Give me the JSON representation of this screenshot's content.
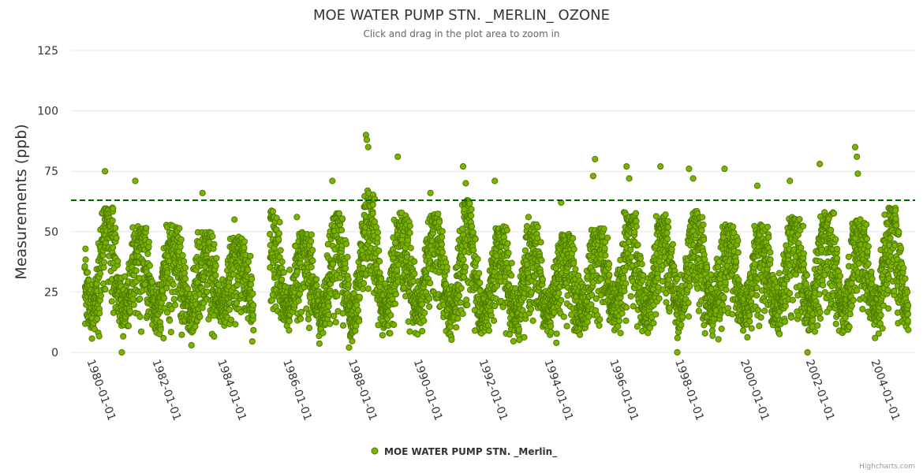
{
  "chart_data": {
    "type": "scatter",
    "title": "MOE WATER PUMP STN. _MERLIN_ OZONE",
    "subtitle": "Click and drag in the plot area to zoom in",
    "ylabel": "Measurements (ppb)",
    "xlabel": "",
    "ylim": [
      0,
      125
    ],
    "yticks": [
      0,
      25,
      50,
      75,
      100,
      125
    ],
    "xlim": [
      "1979-06-01",
      "2005-04-01"
    ],
    "xticks": [
      "1980-01-01",
      "1982-01-01",
      "1984-01-01",
      "1986-01-01",
      "1988-01-01",
      "1990-01-01",
      "1992-01-01",
      "1994-01-01",
      "1996-01-01",
      "1998-01-01",
      "2000-01-01",
      "2002-01-01",
      "2004-01-01"
    ],
    "reference_line": {
      "value": 63,
      "style": "dashed",
      "color": "#006600"
    },
    "grid": true,
    "legend_position": "bottom-center",
    "series": [
      {
        "name": "MOE WATER PUMP STN. _Merlin_",
        "color": "#7cb300",
        "border_color": "#4d7a00",
        "seasonal_model": {
          "note": "daily readings, summer peaks / winter lows; yearly summer peak levels listed",
          "years": [
            1980,
            1981,
            1982,
            1983,
            1984,
            1986,
            1987,
            1988,
            1989,
            1990,
            1991,
            1992,
            1993,
            1994,
            1995,
            1996,
            1997,
            1998,
            1999,
            2000,
            2001,
            2002,
            2003,
            2004
          ],
          "summer_peak": [
            52,
            45,
            45,
            42,
            40,
            42,
            50,
            60,
            50,
            50,
            55,
            45,
            45,
            42,
            45,
            50,
            50,
            52,
            45,
            45,
            48,
            50,
            48,
            52
          ],
          "winter_low": [
            12,
            12,
            12,
            12,
            12,
            12,
            8,
            10,
            12,
            12,
            10,
            10,
            10,
            12,
            12,
            12,
            12,
            12,
            12,
            12,
            12,
            12,
            12,
            12
          ],
          "data_gap": [
            "1985-01-01",
            "1985-07-01"
          ],
          "data_start": "1979-11-01",
          "data_end": "2005-01-15"
        },
        "notable_points": [
          {
            "x": "1980-06-15",
            "y": 75
          },
          {
            "x": "1981-05-20",
            "y": 71
          },
          {
            "x": "1983-06-10",
            "y": 66
          },
          {
            "x": "1984-06-01",
            "y": 55
          },
          {
            "x": "1986-05-01",
            "y": 56
          },
          {
            "x": "1987-06-01",
            "y": 71
          },
          {
            "x": "1988-06-10",
            "y": 90
          },
          {
            "x": "1988-06-20",
            "y": 88
          },
          {
            "x": "1988-07-05",
            "y": 85
          },
          {
            "x": "1989-06-01",
            "y": 81
          },
          {
            "x": "1990-06-01",
            "y": 66
          },
          {
            "x": "1991-06-01",
            "y": 77
          },
          {
            "x": "1991-07-01",
            "y": 70
          },
          {
            "x": "1992-05-20",
            "y": 71
          },
          {
            "x": "1993-06-01",
            "y": 56
          },
          {
            "x": "1994-06-01",
            "y": 62
          },
          {
            "x": "1995-06-15",
            "y": 80
          },
          {
            "x": "1995-05-25",
            "y": 73
          },
          {
            "x": "1996-06-01",
            "y": 77
          },
          {
            "x": "1996-07-01",
            "y": 72
          },
          {
            "x": "1997-06-15",
            "y": 77
          },
          {
            "x": "1998-05-01",
            "y": 76
          },
          {
            "x": "1998-06-15",
            "y": 72
          },
          {
            "x": "1999-06-01",
            "y": 76
          },
          {
            "x": "2000-06-01",
            "y": 69
          },
          {
            "x": "2001-06-01",
            "y": 71
          },
          {
            "x": "2002-05-01",
            "y": 78
          },
          {
            "x": "2003-06-01",
            "y": 85
          },
          {
            "x": "2003-06-20",
            "y": 81
          },
          {
            "x": "2003-07-01",
            "y": 74
          },
          {
            "x": "1980-12-20",
            "y": 0
          },
          {
            "x": "1997-12-20",
            "y": 0
          },
          {
            "x": "2001-12-15",
            "y": 0
          }
        ]
      }
    ]
  },
  "credits": {
    "label": "Highcharts.com"
  }
}
